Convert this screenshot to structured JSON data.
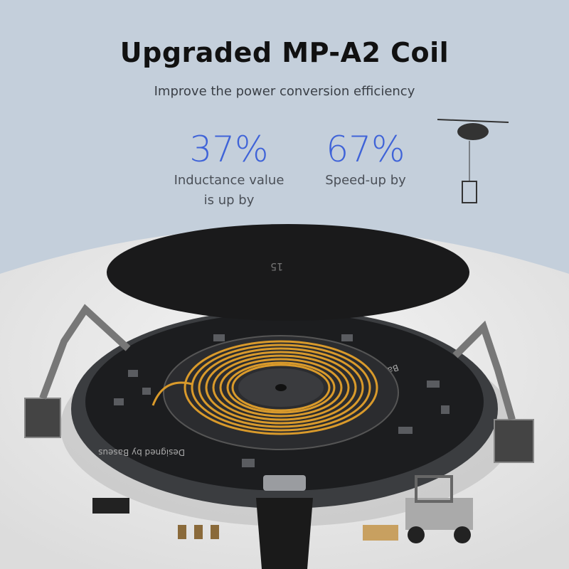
{
  "header": {
    "title": "Upgraded MP-A2 Coil",
    "subtitle": "Improve the power conversion efficiency"
  },
  "stats": [
    {
      "value": "37%",
      "label": "Inductance value\nis up by"
    },
    {
      "value": "67%",
      "label": "Speed-up by"
    }
  ],
  "product": {
    "brand": "Baseus",
    "designed_by": "Designed by Baseus",
    "model": "W1105",
    "cover_mark": "15"
  },
  "colors": {
    "background": "#c4cfdb",
    "accent": "#3f63d8",
    "coil": "#d99a2b"
  }
}
